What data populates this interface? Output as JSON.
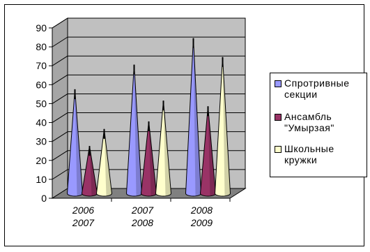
{
  "chart_data": {
    "type": "bar",
    "style": "3d-cone",
    "categories": [
      "2006\n2007",
      "2007\n2008",
      "2008\n2009"
    ],
    "series": [
      {
        "name": "Спротривные\nсекции",
        "values": [
          55,
          68,
          82
        ],
        "color": "#9999ff"
      },
      {
        "name": "Ансамбль\n\"Умырзая\"",
        "values": [
          25,
          38,
          46
        ],
        "color": "#993366"
      },
      {
        "name": "Школьные\nкружки",
        "values": [
          34,
          49,
          72
        ],
        "color": "#ffffcc"
      }
    ],
    "ylim": [
      0,
      90
    ],
    "yticks": [
      "0",
      "10",
      "20",
      "30",
      "40",
      "50",
      "60",
      "70",
      "80",
      "90"
    ],
    "grid": true,
    "wall_color": "#c0c0c0",
    "legend_position": "right"
  }
}
